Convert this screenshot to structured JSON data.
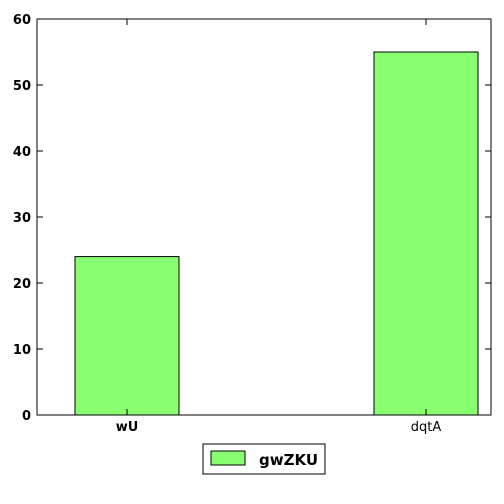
{
  "chart_data": {
    "type": "bar",
    "categories": [
      "wU",
      "dqtA"
    ],
    "series": [
      {
        "name": "gwZKU",
        "values": [
          24,
          55
        ]
      }
    ],
    "ylim": [
      0,
      60
    ],
    "yticks": [
      0,
      10,
      20,
      30,
      40,
      50,
      60
    ],
    "ytick_labels": [
      "0",
      "10",
      "20",
      "30",
      "40",
      "50",
      "60"
    ],
    "grid": false,
    "legend": {
      "placement": "bottom-center",
      "entries": [
        "gwZKU"
      ]
    },
    "colors": {
      "bar_fill": "#88ff70",
      "bar_edge": "#000000",
      "axes": "#000000"
    }
  }
}
